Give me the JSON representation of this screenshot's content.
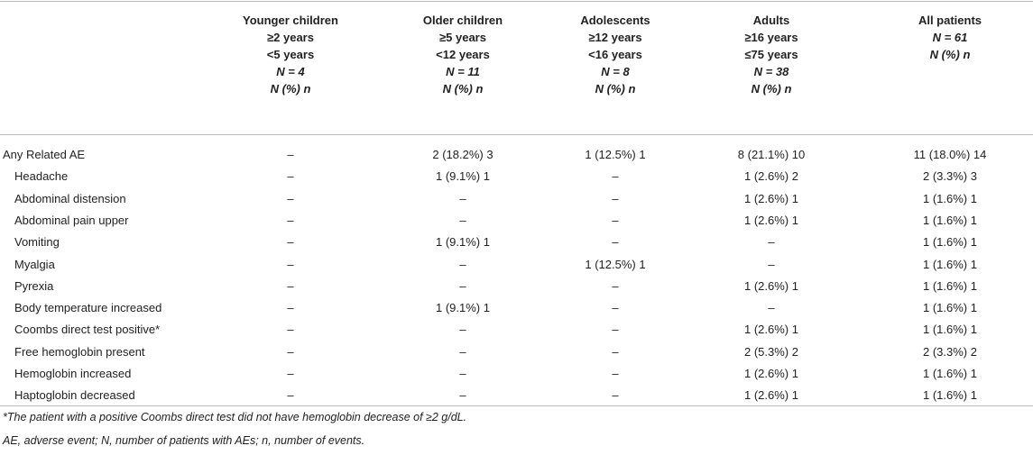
{
  "table": {
    "columns": [
      [
        "Younger children",
        "≥2 years",
        "<5 years",
        "N = 4",
        "N (%) n"
      ],
      [
        "Older children",
        "≥5 years",
        "<12 years",
        "N = 11",
        "N (%) n"
      ],
      [
        "Adolescents",
        "≥12 years",
        "<16 years",
        "N = 8",
        "N (%) n"
      ],
      [
        "Adults",
        "≥16 years",
        "≤75 years",
        "N = 38",
        "N (%) n"
      ],
      [
        "All patients",
        "N = 61",
        "N (%) n"
      ]
    ],
    "rows": [
      [
        "Any Related AE",
        "–",
        "2 (18.2%) 3",
        "1 (12.5%) 1",
        "8 (21.1%) 10",
        "11 (18.0%) 14"
      ],
      [
        "Headache",
        "–",
        "1 (9.1%) 1",
        "–",
        "1 (2.6%) 2",
        "2 (3.3%) 3"
      ],
      [
        "Abdominal distension",
        "–",
        "–",
        "–",
        "1 (2.6%) 1",
        "1 (1.6%) 1"
      ],
      [
        "Abdominal pain upper",
        "–",
        "–",
        "–",
        "1 (2.6%) 1",
        "1 (1.6%) 1"
      ],
      [
        "Vomiting",
        "–",
        "1 (9.1%) 1",
        "–",
        "–",
        "1 (1.6%) 1"
      ],
      [
        "Myalgia",
        "–",
        "–",
        "1 (12.5%) 1",
        "–",
        "1 (1.6%) 1"
      ],
      [
        "Pyrexia",
        "–",
        "–",
        "–",
        "1 (2.6%) 1",
        "1 (1.6%) 1"
      ],
      [
        "Body temperature increased",
        "–",
        "1 (9.1%) 1",
        "–",
        "–",
        "1 (1.6%) 1"
      ],
      [
        "Coombs direct test positive*",
        "–",
        "–",
        "–",
        "1 (2.6%) 1",
        "1 (1.6%) 1"
      ],
      [
        "Free hemoglobin present",
        "–",
        "–",
        "–",
        "2 (5.3%) 2",
        "2 (3.3%) 2"
      ],
      [
        "Hemoglobin increased",
        "–",
        "–",
        "–",
        "1 (2.6%) 1",
        "1 (1.6%) 1"
      ],
      [
        "Haptoglobin decreased",
        "–",
        "–",
        "–",
        "1 (2.6%) 1",
        "1 (1.6%) 1"
      ]
    ],
    "footnotes": [
      "*The patient with a positive Coombs direct test did not have hemoglobin decrease of ≥2 g/dL.",
      "AE, adverse event; N, number of patients with AEs; n, number of events."
    ]
  }
}
